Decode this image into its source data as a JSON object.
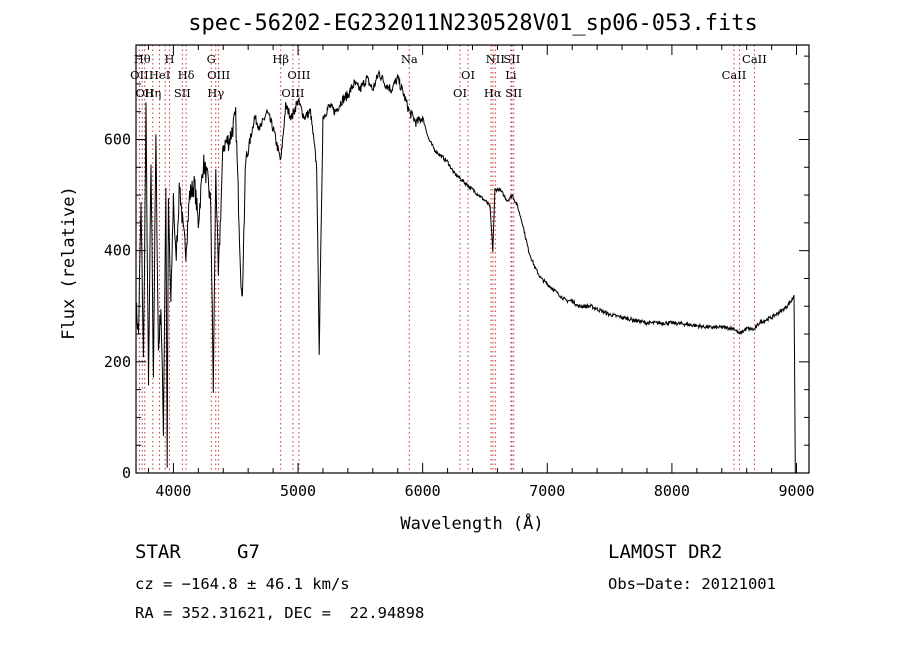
{
  "chart_data": {
    "type": "line",
    "title": "spec-56202-EG232011N230528V01_sp06-053.fits",
    "xlabel": "Wavelength (Å)",
    "ylabel": "Flux (relative)",
    "xlim": [
      3700,
      9100
    ],
    "ylim": [
      0,
      770
    ],
    "xticks": [
      4000,
      5000,
      6000,
      7000,
      8000,
      9000
    ],
    "yticks": [
      0,
      200,
      400,
      600
    ],
    "grid": false,
    "series": [
      {
        "x": [
          3700,
          3720,
          3740,
          3760,
          3780,
          3800,
          3820,
          3840,
          3860,
          3880,
          3900,
          3920,
          3940,
          3950,
          3960,
          3980,
          4000,
          4020,
          4050,
          4080,
          4100,
          4130,
          4170,
          4200,
          4240,
          4280,
          4300,
          4320,
          4340,
          4360,
          4400,
          4450,
          4500,
          4550,
          4580,
          4600,
          4650,
          4700,
          4750,
          4800,
          4862,
          4900,
          4950,
          5000,
          5050,
          5100,
          5150,
          5170,
          5200,
          5250,
          5300,
          5350,
          5400,
          5450,
          5500,
          5550,
          5600,
          5650,
          5700,
          5750,
          5800,
          5850,
          5893,
          5950,
          6000,
          6050,
          6100,
          6150,
          6200,
          6250,
          6300,
          6350,
          6400,
          6450,
          6500,
          6540,
          6563,
          6580,
          6620,
          6680,
          6720,
          6760,
          6800,
          6850,
          6900,
          6950,
          7000,
          7050,
          7100,
          7150,
          7200,
          7250,
          7300,
          7350,
          7400,
          7450,
          7500,
          7600,
          7700,
          7800,
          7900,
          8000,
          8100,
          8200,
          8300,
          8400,
          8498,
          8542,
          8600,
          8662,
          8700,
          8800,
          8900,
          8960,
          8980,
          8990
        ],
        "values": [
          300,
          250,
          480,
          200,
          650,
          150,
          560,
          180,
          600,
          220,
          300,
          80,
          520,
          20,
          480,
          300,
          500,
          380,
          520,
          430,
          400,
          500,
          520,
          450,
          560,
          520,
          480,
          150,
          550,
          350,
          590,
          600,
          640,
          300,
          560,
          580,
          640,
          620,
          650,
          620,
          560,
          660,
          640,
          670,
          640,
          650,
          550,
          220,
          640,
          660,
          650,
          670,
          680,
          700,
          690,
          710,
          690,
          720,
          700,
          690,
          710,
          680,
          650,
          630,
          640,
          600,
          580,
          570,
          560,
          540,
          530,
          520,
          510,
          500,
          490,
          480,
          400,
          510,
          510,
          490,
          500,
          480,
          450,
          400,
          370,
          350,
          340,
          330,
          320,
          310,
          310,
          300,
          300,
          300,
          295,
          290,
          285,
          280,
          275,
          270,
          270,
          270,
          268,
          265,
          262,
          262,
          260,
          250,
          260,
          258,
          270,
          280,
          295,
          310,
          320,
          5
        ]
      }
    ],
    "spectral_lines": [
      {
        "x": 3727,
        "label": "OII",
        "row": 1
      },
      {
        "x": 3750,
        "label": "Hθ",
        "row": 0
      },
      {
        "x": 3770,
        "label": "OII",
        "row": 2
      },
      {
        "x": 3835,
        "label": "Hη",
        "row": 2
      },
      {
        "x": 3889,
        "label": "HeI",
        "row": 1
      },
      {
        "x": 3934,
        "label": "",
        "row": 0
      },
      {
        "x": 3969,
        "label": "H",
        "row": 0
      },
      {
        "x": 4072,
        "label": "SII",
        "row": 2
      },
      {
        "x": 4102,
        "label": "Hδ",
        "row": 1
      },
      {
        "x": 4304,
        "label": "G",
        "row": 0
      },
      {
        "x": 4340,
        "label": "Hγ",
        "row": 2
      },
      {
        "x": 4363,
        "label": "OIII",
        "row": 1
      },
      {
        "x": 4861,
        "label": "Hβ",
        "row": 0
      },
      {
        "x": 4959,
        "label": "OIII",
        "row": 2
      },
      {
        "x": 5007,
        "label": "OIII",
        "row": 1
      },
      {
        "x": 5893,
        "label": "Na",
        "row": 0
      },
      {
        "x": 6300,
        "label": "OI",
        "row": 2
      },
      {
        "x": 6364,
        "label": "OI",
        "row": 1
      },
      {
        "x": 6548,
        "label": "",
        "row": 0
      },
      {
        "x": 6563,
        "label": "Hα",
        "row": 2
      },
      {
        "x": 6583,
        "label": "NII",
        "row": 0
      },
      {
        "x": 6708,
        "label": "Li",
        "row": 1
      },
      {
        "x": 6716,
        "label": "SII",
        "row": 0
      },
      {
        "x": 6731,
        "label": "SII",
        "row": 2
      },
      {
        "x": 8498,
        "label": "CaII",
        "row": 1
      },
      {
        "x": 8542,
        "label": "",
        "row": 0
      },
      {
        "x": 8662,
        "label": "CaII",
        "row": 0
      }
    ],
    "line_colors": {
      "spectrum": "#000000",
      "marker": "#cc3333"
    }
  },
  "info": {
    "object_class": "STAR",
    "subclass": "G7",
    "survey": "LAMOST DR2",
    "cz": "cz = −164.8 ± 46.1 km/s",
    "obs_date": "Obs−Date: 20121001",
    "coords": "RA = 352.31621, DEC =  22.94898"
  }
}
